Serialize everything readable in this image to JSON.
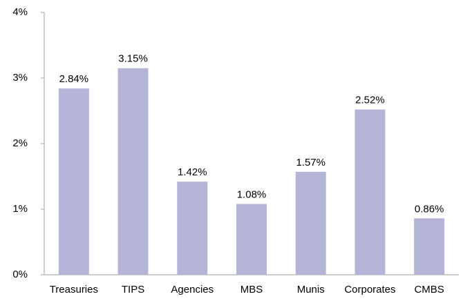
{
  "chart_data": {
    "type": "bar",
    "categories": [
      "Treasuries",
      "TIPS",
      "Agencies",
      "MBS",
      "Munis",
      "Corporates",
      "CMBS"
    ],
    "values": [
      2.84,
      3.15,
      1.42,
      1.08,
      1.57,
      2.52,
      0.86
    ],
    "value_labels": [
      "2.84%",
      "3.15%",
      "1.42%",
      "1.08%",
      "1.57%",
      "2.52%",
      "0.86%"
    ],
    "color": "#b4b4d6",
    "ylim": [
      0,
      4
    ],
    "yticks": [
      {
        "value": 0,
        "label": "0%"
      },
      {
        "value": 1,
        "label": "1%"
      },
      {
        "value": 2,
        "label": "2%"
      },
      {
        "value": 3,
        "label": "3%"
      },
      {
        "value": 4,
        "label": "4%"
      }
    ],
    "grid": false
  }
}
